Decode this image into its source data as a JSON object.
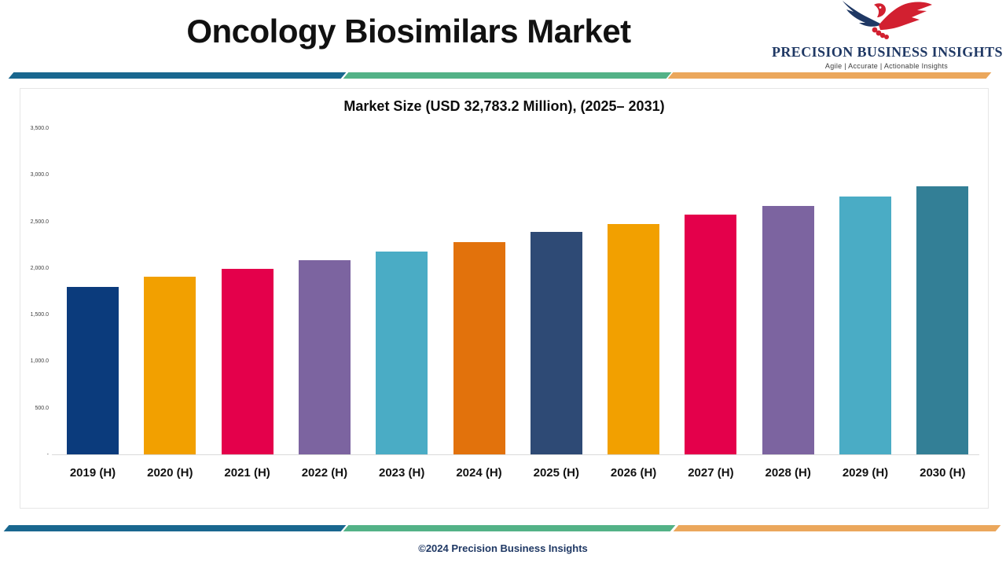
{
  "header": {
    "title": "Oncology Biosimilars Market",
    "logo": {
      "name": "PRECISION BUSINESS INSIGHTS",
      "tagline": "Agile | Accurate | Actionable Insights",
      "navy": "#1F3864",
      "red": "#D22030"
    }
  },
  "chart_data": {
    "type": "bar",
    "title": "Market Size (USD 32,783.2 Million), (2025– 2031)",
    "categories": [
      "2019 (H)",
      "2020 (H)",
      "2021 (H)",
      "2022 (H)",
      "2023 (H)",
      "2024 (H)",
      "2025 (H)",
      "2026 (H)",
      "2027 (H)",
      "2028 (H)",
      "2029 (H)",
      "2030 (H)"
    ],
    "values": [
      1800,
      1905,
      1990,
      2080,
      2175,
      2275,
      2385,
      2470,
      2570,
      2665,
      2765,
      2875
    ],
    "bar_colors": [
      "#0B3B7C",
      "#F2A000",
      "#E4004B",
      "#7C64A0",
      "#4AACC5",
      "#E2720C",
      "#2E4A75",
      "#F2A000",
      "#E4004B",
      "#7C64A0",
      "#4AACC5",
      "#337F96"
    ],
    "xlabel": "",
    "ylabel": "",
    "ylim": [
      0,
      3500
    ],
    "ytick_interval": 500,
    "yticks": [
      {
        "label": "3,500.0",
        "value": 3500
      },
      {
        "label": "3,000.0",
        "value": 3000
      },
      {
        "label": "2,500.0",
        "value": 2500
      },
      {
        "label": "2,000.0",
        "value": 2000
      },
      {
        "label": "1,500.0",
        "value": 1500
      },
      {
        "label": "1,000.0",
        "value": 1000
      },
      {
        "label": "500.0",
        "value": 500
      },
      {
        "label": "-",
        "value": 0
      }
    ],
    "grid": false,
    "legend": null
  },
  "dividers": {
    "blue": "#19678F",
    "green": "#53B287",
    "orange": "#EBA75C"
  },
  "footer": {
    "copyright": "©2024 Precision Business Insights"
  }
}
